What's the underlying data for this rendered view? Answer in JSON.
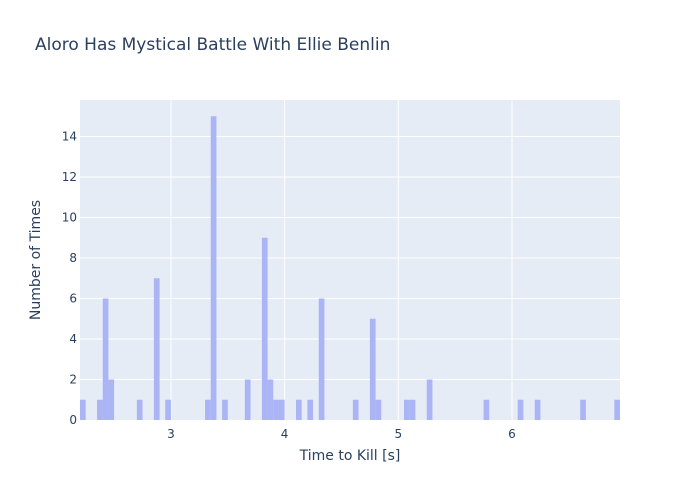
{
  "chart_data": {
    "type": "bar",
    "title": "Aloro Has Mystical Battle With Ellie Benlin",
    "xlabel": "Time to Kill [s]",
    "ylabel": "Number of Times",
    "xlim": [
      2.2,
      6.95
    ],
    "ylim": [
      0,
      15.8
    ],
    "bin_width": 0.05,
    "x_ticks": [
      3,
      4,
      5,
      6
    ],
    "y_ticks": [
      0,
      2,
      4,
      6,
      8,
      10,
      12,
      14
    ],
    "grid": true,
    "legend": "none",
    "colors": {
      "bar": "#abb4f5",
      "plot_bg": "#e5ecf6",
      "grid": "#ffffff",
      "text": "#2a3f5f"
    },
    "bins": [
      {
        "x": 2.225,
        "y": 1
      },
      {
        "x": 2.375,
        "y": 1
      },
      {
        "x": 2.425,
        "y": 6
      },
      {
        "x": 2.475,
        "y": 2
      },
      {
        "x": 2.725,
        "y": 1
      },
      {
        "x": 2.875,
        "y": 7
      },
      {
        "x": 2.975,
        "y": 1
      },
      {
        "x": 3.325,
        "y": 1
      },
      {
        "x": 3.375,
        "y": 15
      },
      {
        "x": 3.475,
        "y": 1
      },
      {
        "x": 3.675,
        "y": 2
      },
      {
        "x": 3.825,
        "y": 9
      },
      {
        "x": 3.875,
        "y": 2
      },
      {
        "x": 3.925,
        "y": 1
      },
      {
        "x": 3.975,
        "y": 1
      },
      {
        "x": 4.125,
        "y": 1
      },
      {
        "x": 4.225,
        "y": 1
      },
      {
        "x": 4.325,
        "y": 6
      },
      {
        "x": 4.625,
        "y": 1
      },
      {
        "x": 4.775,
        "y": 5
      },
      {
        "x": 4.825,
        "y": 1
      },
      {
        "x": 5.075,
        "y": 1
      },
      {
        "x": 5.125,
        "y": 1
      },
      {
        "x": 5.275,
        "y": 2
      },
      {
        "x": 5.775,
        "y": 1
      },
      {
        "x": 6.075,
        "y": 1
      },
      {
        "x": 6.225,
        "y": 1
      },
      {
        "x": 6.625,
        "y": 1
      },
      {
        "x": 6.925,
        "y": 1
      }
    ]
  }
}
